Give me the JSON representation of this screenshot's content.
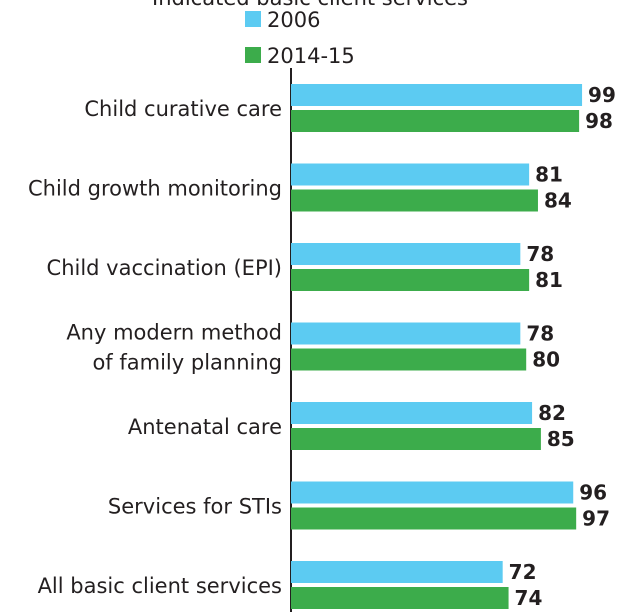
{
  "chart_data": {
    "type": "bar",
    "orientation": "horizontal",
    "title": "Indicated basic client services",
    "categories": [
      "Child curative care",
      "Child growth monitoring",
      "Child vaccination (EPI)",
      "Any modern method\nof family planning",
      "Antenatal care",
      "Services for STIs",
      "All basic client services"
    ],
    "series": [
      {
        "name": "2006",
        "color": "#5ccbf2",
        "values": [
          99,
          81,
          78,
          78,
          82,
          96,
          72
        ]
      },
      {
        "name": "2014-15",
        "color": "#3cac4b",
        "values": [
          98,
          84,
          81,
          80,
          85,
          97,
          74
        ]
      }
    ],
    "xlim": [
      0,
      100
    ]
  }
}
